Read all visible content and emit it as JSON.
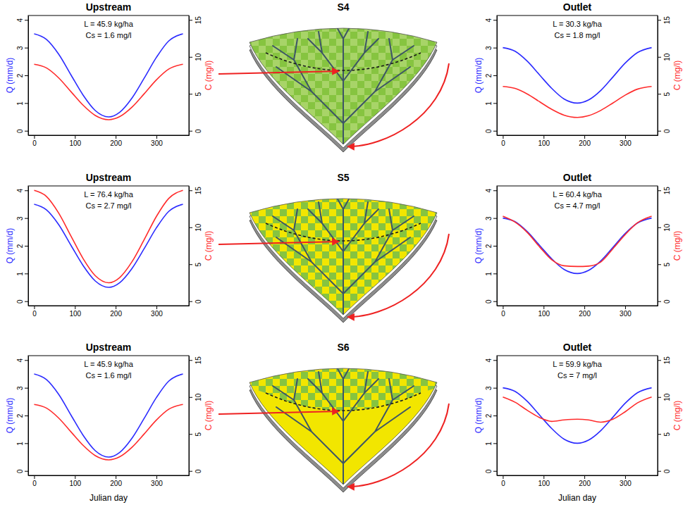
{
  "scenarios": [
    {
      "title": "S4"
    },
    {
      "title": "S5"
    },
    {
      "title": "S6"
    }
  ],
  "chart_data": [
    {
      "type": "line",
      "title": "Upstream",
      "annotations": [
        "L = 45.9 kg/ha",
        "Cs = 1.6 mg/l"
      ],
      "x": [
        0,
        30,
        60,
        91,
        120,
        150,
        183,
        210,
        240,
        270,
        300,
        330,
        365
      ],
      "xlim": [
        -14.6,
        379.6
      ],
      "xticks": [
        0,
        100,
        200,
        300
      ],
      "ylim": [
        -0.16,
        4.16
      ],
      "yticks": [
        0,
        1,
        2,
        3,
        4
      ],
      "y2lim": [
        -0.6,
        15.6
      ],
      "y2ticks": [
        0,
        5,
        10,
        15
      ],
      "series": [
        {
          "name": "Q (mm/d)",
          "color": "#2b2bff",
          "values": [
            3.5,
            3.3,
            2.77,
            2.0,
            1.29,
            0.73,
            0.5,
            0.67,
            1.18,
            1.9,
            2.65,
            3.24,
            3.5
          ]
        },
        {
          "name": "C (mg/l)",
          "color": "#ff2b2b",
          "axis": "y2",
          "values": [
            9.0,
            8.51,
            7.17,
            5.25,
            3.47,
            2.07,
            1.5,
            1.92,
            3.2,
            5.01,
            6.89,
            8.34,
            9.0
          ]
        }
      ]
    },
    {
      "type": "line",
      "title": "Outlet",
      "annotations": [
        "L = 30.3 kg/ha",
        "Cs = 1.8 mg/l"
      ],
      "x": [
        0,
        30,
        60,
        91,
        120,
        150,
        183,
        210,
        240,
        270,
        300,
        330,
        365
      ],
      "xlim": [
        -14.6,
        379.6
      ],
      "xticks": [
        0,
        100,
        200,
        300
      ],
      "ylim": [
        -0.16,
        4.16
      ],
      "yticks": [
        0,
        1,
        2,
        3,
        4
      ],
      "y2lim": [
        -0.6,
        15.6
      ],
      "y2ticks": [
        0,
        5,
        10,
        15
      ],
      "series": [
        {
          "name": "Q (mm/d)",
          "color": "#2b2bff",
          "values": [
            3.0,
            2.87,
            2.51,
            2.0,
            1.53,
            1.15,
            1.0,
            1.11,
            1.45,
            1.94,
            2.44,
            2.82,
            3.0
          ]
        },
        {
          "name": "C (mg/l)",
          "color": "#ff2b2b",
          "axis": "y2",
          "values": [
            6.0,
            5.73,
            4.98,
            3.9,
            2.9,
            2.12,
            1.8,
            2.04,
            2.75,
            3.76,
            4.82,
            5.63,
            6.0
          ]
        }
      ]
    },
    {
      "type": "line",
      "title": "Upstream",
      "annotations": [
        "L = 76.4 kg/ha",
        "Cs = 2.7 mg/l"
      ],
      "x": [
        0,
        30,
        60,
        91,
        120,
        150,
        183,
        210,
        240,
        270,
        300,
        330,
        365
      ],
      "xlim": [
        -14.6,
        379.6
      ],
      "xticks": [
        0,
        100,
        200,
        300
      ],
      "ylim": [
        -0.16,
        4.16
      ],
      "yticks": [
        0,
        1,
        2,
        3,
        4
      ],
      "y2lim": [
        -0.6,
        15.6
      ],
      "y2ticks": [
        0,
        5,
        10,
        15
      ],
      "series": [
        {
          "name": "Q (mm/d)",
          "color": "#2b2bff",
          "values": [
            3.5,
            3.3,
            2.77,
            2.0,
            1.29,
            0.73,
            0.5,
            0.67,
            1.18,
            1.9,
            2.65,
            3.24,
            3.5
          ]
        },
        {
          "name": "C (mg/l)",
          "color": "#ff2b2b",
          "axis": "y2",
          "values": [
            15.0,
            14.19,
            11.95,
            8.75,
            5.78,
            3.45,
            2.5,
            3.21,
            5.34,
            8.34,
            11.48,
            13.9,
            15.0
          ]
        }
      ]
    },
    {
      "type": "line",
      "title": "Outlet",
      "annotations": [
        "L = 60.4 kg/ha",
        "Cs = 4.7 mg/l"
      ],
      "x": [
        0,
        30,
        60,
        91,
        120,
        150,
        183,
        210,
        240,
        270,
        300,
        330,
        365
      ],
      "xlim": [
        -14.6,
        379.6
      ],
      "xticks": [
        0,
        100,
        200,
        300
      ],
      "ylim": [
        -0.16,
        4.16
      ],
      "yticks": [
        0,
        1,
        2,
        3,
        4
      ],
      "y2lim": [
        -0.6,
        15.6
      ],
      "y2ticks": [
        0,
        5,
        10,
        15
      ],
      "series": [
        {
          "name": "Q (mm/d)",
          "color": "#2b2bff",
          "values": [
            3.0,
            2.87,
            2.51,
            2.0,
            1.53,
            1.15,
            1.0,
            1.11,
            1.45,
            1.94,
            2.44,
            2.82,
            3.0
          ]
        },
        {
          "name": "C (mg/l)",
          "color": "#ff2b2b",
          "axis": "y2",
          "values": [
            11.5,
            10.7,
            9.3,
            7.3,
            5.6,
            4.8,
            4.7,
            4.75,
            5.3,
            7.1,
            9.0,
            10.6,
            11.5
          ]
        }
      ]
    },
    {
      "type": "line",
      "title": "Upstream",
      "x_label": "Julian day",
      "annotations": [
        "L = 45.9 kg/ha",
        "Cs = 1.6 mg/l"
      ],
      "x": [
        0,
        30,
        60,
        91,
        120,
        150,
        183,
        210,
        240,
        270,
        300,
        330,
        365
      ],
      "xlim": [
        -14.6,
        379.6
      ],
      "xticks": [
        0,
        100,
        200,
        300
      ],
      "ylim": [
        -0.16,
        4.16
      ],
      "yticks": [
        0,
        1,
        2,
        3,
        4
      ],
      "y2lim": [
        -0.6,
        15.6
      ],
      "y2ticks": [
        0,
        5,
        10,
        15
      ],
      "series": [
        {
          "name": "Q (mm/d)",
          "color": "#2b2bff",
          "values": [
            3.5,
            3.3,
            2.77,
            2.0,
            1.29,
            0.73,
            0.5,
            0.67,
            1.18,
            1.9,
            2.65,
            3.24,
            3.5
          ]
        },
        {
          "name": "C (mg/l)",
          "color": "#ff2b2b",
          "axis": "y2",
          "values": [
            9.0,
            8.51,
            7.17,
            5.25,
            3.47,
            2.07,
            1.5,
            1.92,
            3.2,
            5.01,
            6.89,
            8.34,
            9.0
          ]
        }
      ]
    },
    {
      "type": "line",
      "title": "Outlet",
      "x_label": "Julian day",
      "annotations": [
        "L = 59.9 kg/ha",
        "Cs = 7 mg/l"
      ],
      "x": [
        0,
        30,
        60,
        91,
        120,
        150,
        183,
        210,
        240,
        270,
        300,
        330,
        365
      ],
      "xlim": [
        -14.6,
        379.6
      ],
      "xticks": [
        0,
        100,
        200,
        300
      ],
      "ylim": [
        -0.16,
        4.16
      ],
      "yticks": [
        0,
        1,
        2,
        3,
        4
      ],
      "y2lim": [
        -0.6,
        15.6
      ],
      "y2ticks": [
        0,
        5,
        10,
        15
      ],
      "series": [
        {
          "name": "Q (mm/d)",
          "color": "#2b2bff",
          "values": [
            3.0,
            2.87,
            2.51,
            2.0,
            1.53,
            1.15,
            1.0,
            1.11,
            1.45,
            1.94,
            2.44,
            2.82,
            3.0
          ]
        },
        {
          "name": "C (mg/l)",
          "color": "#ff2b2b",
          "axis": "y2",
          "values": [
            10.0,
            9.3,
            8.2,
            7.2,
            6.7,
            6.9,
            7.0,
            6.9,
            6.6,
            7.0,
            8.0,
            9.2,
            10.0
          ]
        }
      ]
    }
  ]
}
